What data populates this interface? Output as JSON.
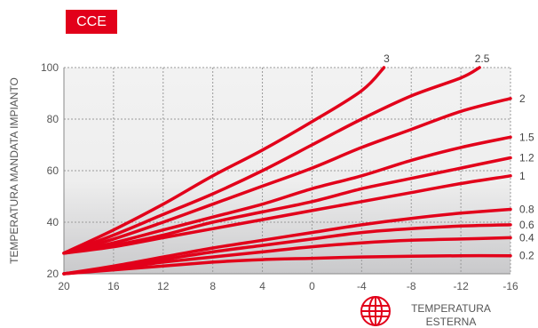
{
  "badge": "CCE",
  "chart_data": {
    "type": "line",
    "xlabel": "TEMPERATURA ESTERNA",
    "ylabel": "TEMPERATURA MANDATA IMPIANTO",
    "xlim": [
      20,
      -16
    ],
    "ylim": [
      20,
      100
    ],
    "x_ticks": [
      "20",
      "16",
      "12",
      "8",
      "4",
      "0",
      "-4",
      "-8",
      "-12",
      "-16"
    ],
    "y_ticks": [
      "20",
      "40",
      "60",
      "80",
      "100"
    ],
    "grid": true,
    "colors": {
      "line": "#e2001a",
      "plot_bg_top": "#f2f2f2",
      "plot_bg_bottom": "#c9c9cb"
    },
    "series": [
      {
        "name": "3",
        "points": [
          [
            20,
            28
          ],
          [
            16,
            37
          ],
          [
            12,
            47
          ],
          [
            8,
            58
          ],
          [
            4,
            68
          ],
          [
            0,
            79
          ],
          [
            -4,
            91
          ],
          [
            -5.8,
            100
          ]
        ]
      },
      {
        "name": "2.5",
        "points": [
          [
            20,
            28
          ],
          [
            16,
            35
          ],
          [
            12,
            43
          ],
          [
            8,
            51
          ],
          [
            4,
            60
          ],
          [
            0,
            70
          ],
          [
            -4,
            80
          ],
          [
            -8,
            89
          ],
          [
            -12,
            96
          ],
          [
            -13.5,
            100
          ]
        ]
      },
      {
        "name": "2",
        "points": [
          [
            20,
            28
          ],
          [
            16,
            33.5
          ],
          [
            12,
            40
          ],
          [
            8,
            47
          ],
          [
            4,
            54
          ],
          [
            0,
            61
          ],
          [
            -4,
            69
          ],
          [
            -8,
            76
          ],
          [
            -12,
            83
          ],
          [
            -16,
            88
          ]
        ]
      },
      {
        "name": "1.5",
        "points": [
          [
            20,
            28
          ],
          [
            16,
            32
          ],
          [
            12,
            37
          ],
          [
            8,
            42
          ],
          [
            4,
            47
          ],
          [
            0,
            53
          ],
          [
            -4,
            58
          ],
          [
            -8,
            64
          ],
          [
            -12,
            69
          ],
          [
            -16,
            73
          ]
        ]
      },
      {
        "name": "1.2",
        "points": [
          [
            20,
            28
          ],
          [
            16,
            31
          ],
          [
            12,
            35
          ],
          [
            8,
            40
          ],
          [
            4,
            44
          ],
          [
            0,
            48
          ],
          [
            -4,
            53
          ],
          [
            -8,
            57
          ],
          [
            -12,
            61
          ],
          [
            -16,
            65
          ]
        ]
      },
      {
        "name": "1",
        "points": [
          [
            20,
            28
          ],
          [
            16,
            30.5
          ],
          [
            12,
            34
          ],
          [
            8,
            37.5
          ],
          [
            4,
            41
          ],
          [
            0,
            44.5
          ],
          [
            -4,
            48
          ],
          [
            -8,
            51.5
          ],
          [
            -12,
            55
          ],
          [
            -16,
            58
          ]
        ]
      },
      {
        "name": "0.8",
        "points": [
          [
            20,
            20
          ],
          [
            16,
            23
          ],
          [
            12,
            26.5
          ],
          [
            8,
            30
          ],
          [
            4,
            33
          ],
          [
            0,
            36
          ],
          [
            -4,
            39
          ],
          [
            -8,
            41.5
          ],
          [
            -12,
            43.5
          ],
          [
            -16,
            45
          ]
        ]
      },
      {
        "name": "0.6",
        "points": [
          [
            20,
            20
          ],
          [
            16,
            22.5
          ],
          [
            12,
            25.5
          ],
          [
            8,
            28.5
          ],
          [
            4,
            31
          ],
          [
            0,
            33.5
          ],
          [
            -4,
            36
          ],
          [
            -8,
            37.5
          ],
          [
            -12,
            38.5
          ],
          [
            -16,
            39
          ]
        ]
      },
      {
        "name": "0.4",
        "points": [
          [
            20,
            20
          ],
          [
            16,
            22
          ],
          [
            12,
            24.5
          ],
          [
            8,
            26.5
          ],
          [
            4,
            28.5
          ],
          [
            0,
            30.5
          ],
          [
            -4,
            32
          ],
          [
            -8,
            33
          ],
          [
            -12,
            33.5
          ],
          [
            -16,
            34
          ]
        ]
      },
      {
        "name": "0.2",
        "points": [
          [
            20,
            20
          ],
          [
            16,
            21.5
          ],
          [
            12,
            23
          ],
          [
            8,
            24.5
          ],
          [
            4,
            25.5
          ],
          [
            0,
            26
          ],
          [
            -4,
            26.5
          ],
          [
            -8,
            26.8
          ],
          [
            -12,
            27
          ],
          [
            -16,
            27
          ]
        ]
      }
    ]
  }
}
